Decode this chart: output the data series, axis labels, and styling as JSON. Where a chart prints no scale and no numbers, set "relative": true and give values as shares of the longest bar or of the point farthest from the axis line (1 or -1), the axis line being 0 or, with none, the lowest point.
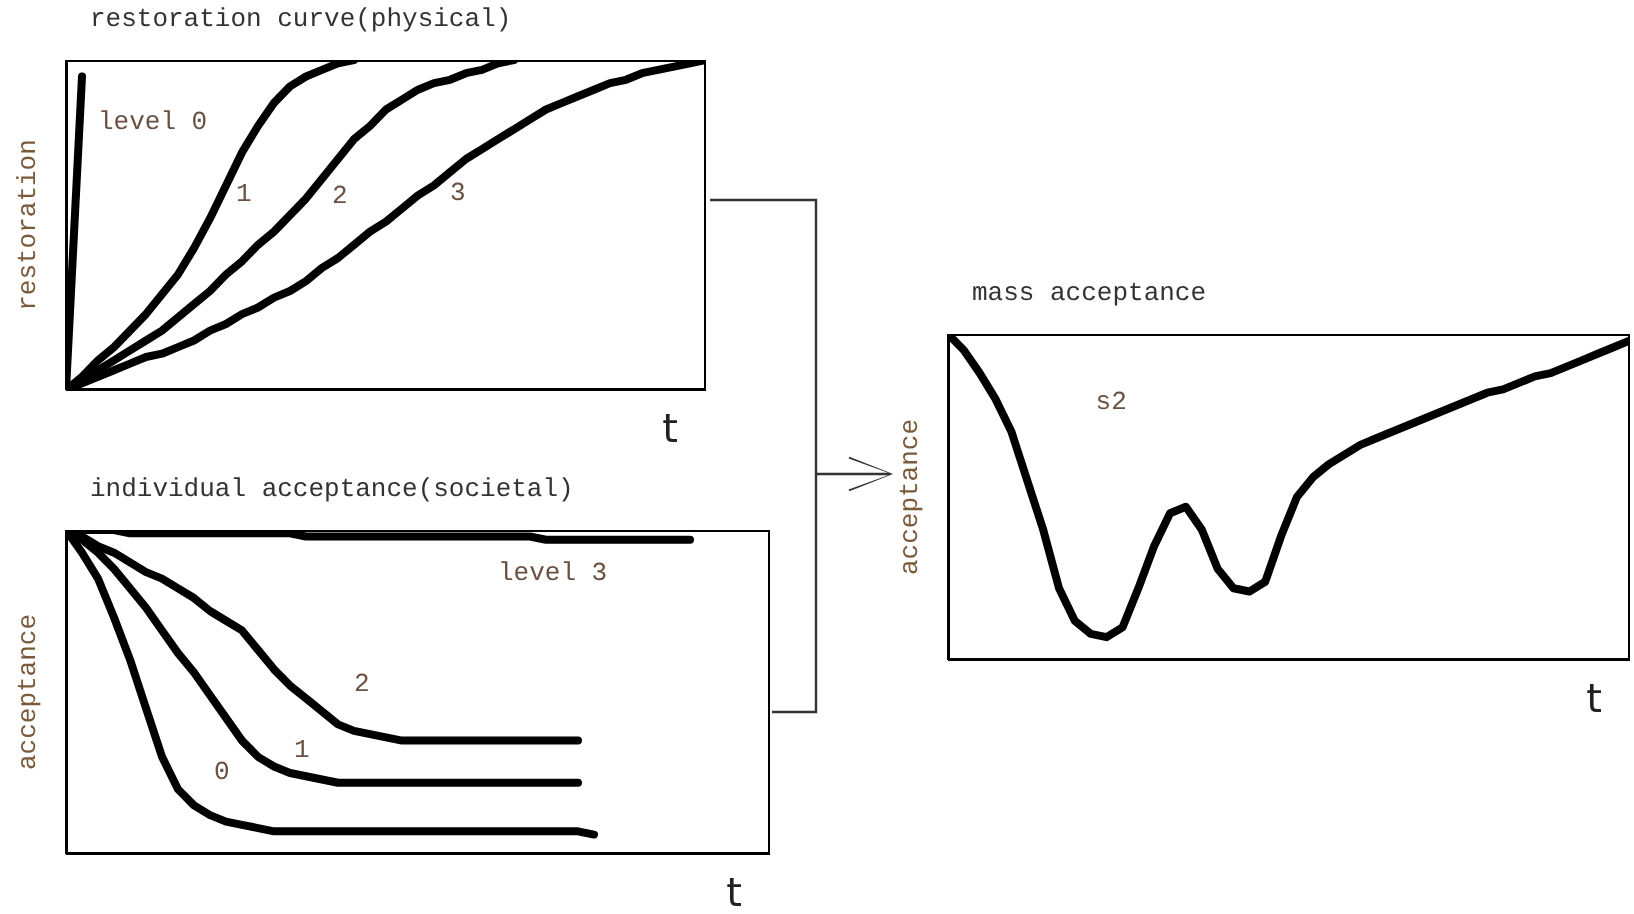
{
  "chart_data": [
    {
      "type": "line",
      "title": "restoration curve(physical)",
      "xlabel": "t",
      "ylabel": "restoration",
      "relative": true,
      "marker": "none",
      "line_style": "solid",
      "categories": [
        null,
        null,
        null,
        null,
        null,
        null,
        null,
        null,
        null,
        null,
        null,
        null,
        null,
        null,
        null,
        null,
        null,
        null,
        null,
        null,
        null,
        null,
        null,
        null,
        null,
        null,
        null,
        null,
        null,
        null,
        null,
        null,
        null,
        null,
        null,
        null,
        null,
        null,
        null,
        null,
        null
      ],
      "series": [
        {
          "name": "level 0",
          "color": "#000000",
          "values": [
            0,
            0.95,
            null,
            null,
            null,
            null,
            null,
            null,
            null,
            null,
            null,
            null,
            null,
            null,
            null,
            null,
            null,
            null,
            null,
            null,
            null,
            null,
            null,
            null,
            null,
            null,
            null,
            null,
            null,
            null,
            null,
            null,
            null,
            null,
            null,
            null,
            null,
            null,
            null,
            null,
            null
          ]
        },
        {
          "name": "1",
          "color": "#000000",
          "values": [
            0,
            0.04,
            0.09,
            0.13,
            0.18,
            0.23,
            0.29,
            0.35,
            0.43,
            0.52,
            0.62,
            0.72,
            0.8,
            0.87,
            0.92,
            0.95,
            0.97,
            0.99,
            1,
            null,
            null,
            null,
            null,
            null,
            null,
            null,
            null,
            null,
            null,
            null,
            null,
            null,
            null,
            null,
            null,
            null,
            null,
            null,
            null,
            null,
            null
          ]
        },
        {
          "name": "2",
          "color": "#000000",
          "values": [
            0,
            0.03,
            0.06,
            0.09,
            0.12,
            0.15,
            0.18,
            0.22,
            0.26,
            0.3,
            0.35,
            0.39,
            0.44,
            0.48,
            0.53,
            0.58,
            0.64,
            0.7,
            0.76,
            0.8,
            0.85,
            0.88,
            0.91,
            0.93,
            0.94,
            0.96,
            0.97,
            0.99,
            1,
            null,
            null,
            null,
            null,
            null,
            null,
            null,
            null,
            null,
            null,
            null,
            null
          ]
        },
        {
          "name": "3",
          "color": "#000000",
          "values": [
            0,
            0.02,
            0.04,
            0.06,
            0.08,
            0.1,
            0.11,
            0.13,
            0.15,
            0.18,
            0.2,
            0.23,
            0.25,
            0.28,
            0.3,
            0.33,
            0.37,
            0.4,
            0.44,
            0.48,
            0.51,
            0.55,
            0.59,
            0.62,
            0.66,
            0.7,
            0.73,
            0.76,
            0.79,
            0.82,
            0.85,
            0.87,
            0.89,
            0.91,
            0.93,
            0.94,
            0.96,
            0.97,
            0.98,
            0.99,
            1
          ]
        }
      ]
    },
    {
      "type": "line",
      "title": "individual acceptance(societal)",
      "xlabel": "t",
      "ylabel": "acceptance",
      "relative": true,
      "marker": "none",
      "line_style": "solid",
      "categories": [
        null,
        null,
        null,
        null,
        null,
        null,
        null,
        null,
        null,
        null,
        null,
        null,
        null,
        null,
        null,
        null,
        null,
        null,
        null,
        null,
        null,
        null,
        null,
        null,
        null,
        null,
        null,
        null,
        null,
        null,
        null,
        null,
        null,
        null,
        null,
        null,
        null,
        null,
        null,
        null,
        null,
        null,
        null,
        null,
        null
      ],
      "series": [
        {
          "name": "level 3",
          "color": "#000000",
          "values": [
            1,
            1,
            1,
            1,
            0.99,
            0.99,
            0.99,
            0.99,
            0.99,
            0.99,
            0.99,
            0.99,
            0.99,
            0.99,
            0.99,
            0.98,
            0.98,
            0.98,
            0.98,
            0.98,
            0.98,
            0.98,
            0.98,
            0.98,
            0.98,
            0.98,
            0.98,
            0.98,
            0.98,
            0.98,
            0.97,
            0.97,
            0.97,
            0.97,
            0.97,
            0.97,
            0.97,
            0.97,
            0.97,
            0.97,
            null,
            null,
            null,
            null,
            null
          ]
        },
        {
          "name": "2",
          "color": "#000000",
          "values": [
            1,
            0.98,
            0.95,
            0.93,
            0.9,
            0.87,
            0.85,
            0.82,
            0.79,
            0.75,
            0.72,
            0.69,
            0.63,
            0.57,
            0.52,
            0.48,
            0.44,
            0.4,
            0.38,
            0.37,
            0.36,
            0.35,
            0.35,
            0.35,
            0.35,
            0.35,
            0.35,
            0.35,
            0.35,
            0.35,
            0.35,
            0.35,
            0.35,
            null,
            null,
            null,
            null,
            null,
            null,
            null,
            null,
            null,
            null,
            null,
            null
          ]
        },
        {
          "name": "1",
          "color": "#000000",
          "values": [
            1,
            0.97,
            0.93,
            0.88,
            0.82,
            0.76,
            0.69,
            0.62,
            0.56,
            0.49,
            0.42,
            0.35,
            0.3,
            0.27,
            0.25,
            0.24,
            0.23,
            0.22,
            0.22,
            0.22,
            0.22,
            0.22,
            0.22,
            0.22,
            0.22,
            0.22,
            0.22,
            0.22,
            0.22,
            0.22,
            0.22,
            0.22,
            0.22,
            null,
            null,
            null,
            null,
            null,
            null,
            null,
            null,
            null,
            null,
            null,
            null
          ]
        },
        {
          "name": "0",
          "color": "#000000",
          "values": [
            1,
            0.93,
            0.85,
            0.73,
            0.6,
            0.45,
            0.3,
            0.2,
            0.15,
            0.12,
            0.1,
            0.09,
            0.08,
            0.07,
            0.07,
            0.07,
            0.07,
            0.07,
            0.07,
            0.07,
            0.07,
            0.07,
            0.07,
            0.07,
            0.07,
            0.07,
            0.07,
            0.07,
            0.07,
            0.07,
            0.07,
            0.07,
            0.07,
            0.06,
            null,
            null,
            null,
            null,
            null,
            null,
            null,
            null,
            null,
            null,
            null
          ]
        }
      ]
    },
    {
      "type": "line",
      "title": "mass acceptance",
      "xlabel": "t",
      "ylabel": "acceptance",
      "relative": true,
      "marker": "none",
      "line_style": "solid",
      "categories": [
        null,
        null,
        null,
        null,
        null,
        null,
        null,
        null,
        null,
        null,
        null,
        null,
        null,
        null,
        null,
        null,
        null,
        null,
        null,
        null,
        null,
        null,
        null,
        null,
        null,
        null,
        null,
        null,
        null,
        null,
        null,
        null,
        null,
        null,
        null,
        null,
        null,
        null,
        null,
        null,
        null,
        null,
        null,
        null
      ],
      "series": [
        {
          "name": "s2",
          "color": "#000000",
          "values": [
            1,
            0.95,
            0.88,
            0.8,
            0.7,
            0.55,
            0.4,
            0.22,
            0.12,
            0.08,
            0.07,
            0.1,
            0.22,
            0.35,
            0.45,
            0.47,
            0.4,
            0.28,
            0.22,
            0.21,
            0.24,
            0.38,
            0.5,
            0.56,
            0.6,
            0.63,
            0.66,
            0.68,
            0.7,
            0.72,
            0.74,
            0.76,
            0.78,
            0.8,
            0.82,
            0.83,
            0.85,
            0.87,
            0.88,
            0.9,
            0.92,
            0.94,
            0.96,
            0.98
          ]
        }
      ]
    }
  ]
}
